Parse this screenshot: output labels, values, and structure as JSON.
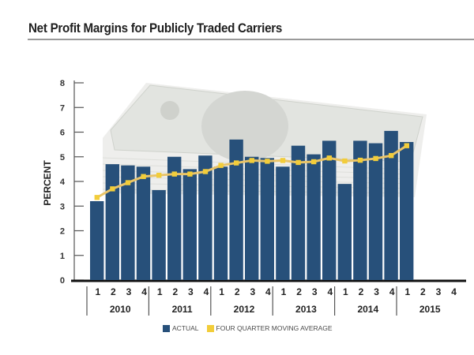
{
  "chart_data": {
    "type": "bar",
    "title": "Net Profit Margins for Publicly Traded Carriers",
    "xlabel": "",
    "ylabel": "PERCENT",
    "ylim": [
      0,
      8
    ],
    "yticks": [
      "0",
      "1",
      "2",
      "3",
      "4",
      "5",
      "6",
      "7",
      "8"
    ],
    "years": [
      "2010",
      "2011",
      "2012",
      "2013",
      "2014",
      "2015"
    ],
    "quarter_labels": [
      "1",
      "2",
      "3",
      "4"
    ],
    "categories": [
      "2010 Q1",
      "2010 Q2",
      "2010 Q3",
      "2010 Q4",
      "2011 Q1",
      "2011 Q2",
      "2011 Q3",
      "2011 Q4",
      "2012 Q1",
      "2012 Q2",
      "2012 Q3",
      "2012 Q4",
      "2013 Q1",
      "2013 Q2",
      "2013 Q3",
      "2013 Q4",
      "2014 Q1",
      "2014 Q2",
      "2014 Q3",
      "2014 Q4",
      "2015 Q1",
      "2015 Q2",
      "2015 Q3",
      "2015 Q4"
    ],
    "series": [
      {
        "name": "ACTUAL",
        "type": "bar",
        "color": "#27507a",
        "values": [
          3.2,
          4.7,
          4.65,
          4.6,
          3.65,
          5.0,
          4.5,
          5.05,
          4.6,
          5.7,
          5.0,
          4.95,
          4.6,
          5.45,
          5.1,
          5.65,
          3.9,
          5.65,
          5.55,
          6.05,
          5.6,
          null,
          null,
          null
        ]
      },
      {
        "name": "FOUR QUARTER MOVING AVERAGE",
        "type": "line",
        "color": "#f2cd3a",
        "values": [
          3.35,
          3.7,
          3.95,
          4.2,
          4.25,
          4.3,
          4.3,
          4.4,
          4.65,
          4.75,
          4.85,
          4.82,
          4.85,
          4.77,
          4.8,
          4.95,
          4.83,
          4.86,
          4.93,
          5.05,
          5.45,
          null,
          null,
          null
        ]
      }
    ],
    "legend": {
      "position": "bottom",
      "entries": [
        "ACTUAL",
        "FOUR QUARTER MOVING AVERAGE"
      ]
    },
    "grid": false
  }
}
